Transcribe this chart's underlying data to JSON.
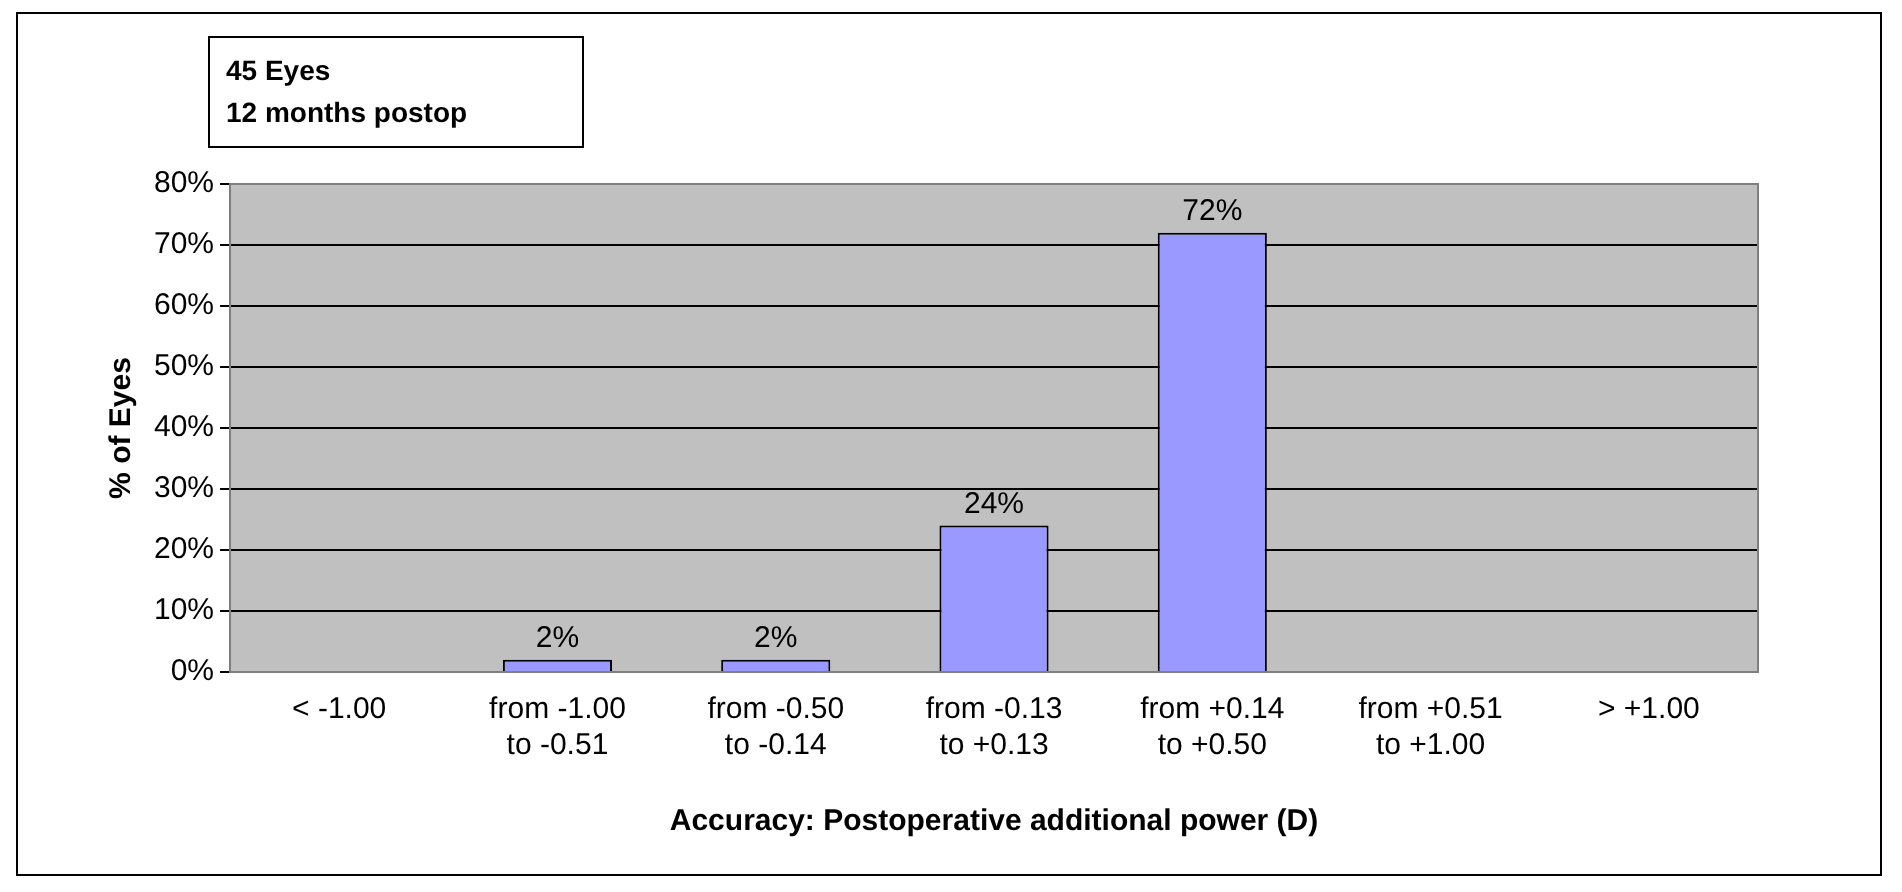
{
  "chart_data": {
    "type": "bar",
    "categories": [
      "< -1.00",
      "from -1.00\nto -0.51",
      "from -0.50\nto -0.14",
      "from -0.13\nto +0.13",
      "from +0.14\nto +0.50",
      "from +0.51\nto +1.00",
      "> +1.00"
    ],
    "values": [
      0,
      2,
      2,
      24,
      72,
      0,
      0
    ],
    "value_labels": [
      null,
      "2%",
      "2%",
      "24%",
      "72%",
      null,
      null
    ],
    "color": "#9999ff",
    "xlabel": "Accuracy: Postoperative additional power (D)",
    "ylabel": "% of Eyes",
    "ylim": [
      0,
      80
    ],
    "yticks": [
      {
        "value": 0,
        "label": "0%"
      },
      {
        "value": 10,
        "label": "10%"
      },
      {
        "value": 20,
        "label": "20%"
      },
      {
        "value": 30,
        "label": "30%"
      },
      {
        "value": 40,
        "label": "40%"
      },
      {
        "value": 50,
        "label": "50%"
      },
      {
        "value": 60,
        "label": "60%"
      },
      {
        "value": 70,
        "label": "70%"
      },
      {
        "value": 80,
        "label": "80%"
      }
    ],
    "grid": "y",
    "annotations": [
      "45 Eyes",
      "12 months postop"
    ]
  }
}
